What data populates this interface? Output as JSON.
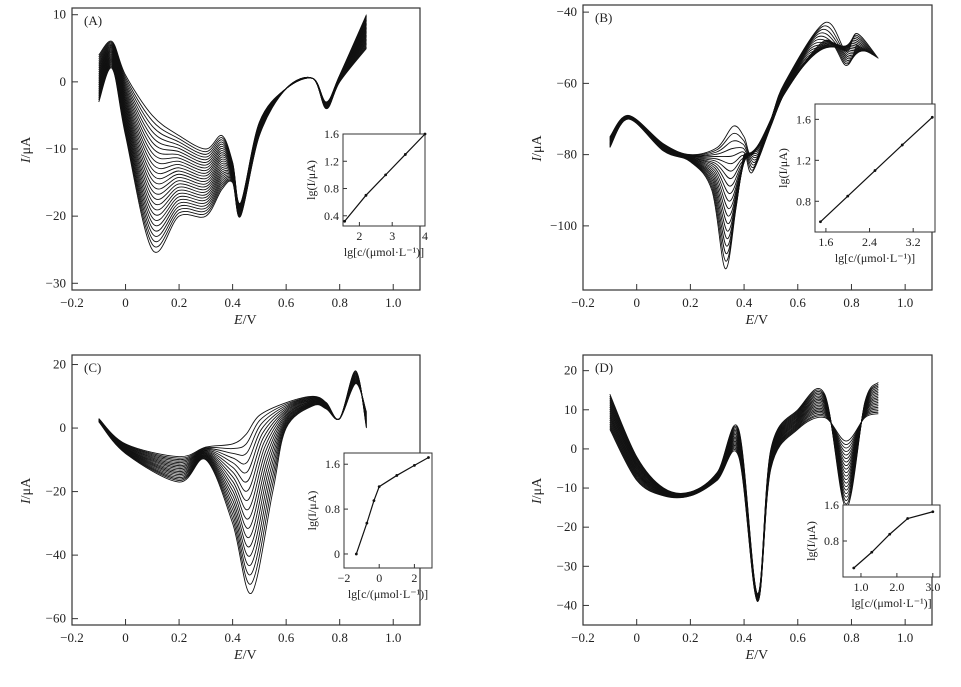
{
  "chart_data": [
    {
      "type": "line",
      "panel_label": "(A)",
      "xlabel_italic": "E",
      "xlabel_unit": "/V",
      "ylabel_italic": "I",
      "ylabel_unit": "/μA",
      "xlim": [
        -0.2,
        1.1
      ],
      "ylim": [
        -31,
        11
      ],
      "xticks": [
        -0.2,
        0,
        0.2,
        0.4,
        0.6,
        0.8,
        1.0
      ],
      "xtick_labels": [
        "−0.2",
        "0",
        "0.2",
        "0.4",
        "0.6",
        "0.8",
        "1.0"
      ],
      "yticks": [
        10,
        0,
        -10,
        -20,
        -30
      ],
      "ytick_labels": [
        "10",
        "0",
        "−10",
        "−20",
        "−30"
      ],
      "n_curves": 26,
      "curve_first": [
        [
          -0.1,
          4
        ],
        [
          -0.05,
          6
        ],
        [
          0,
          1
        ],
        [
          0.1,
          -5
        ],
        [
          0.2,
          -8
        ],
        [
          0.3,
          -10
        ],
        [
          0.36,
          -8
        ],
        [
          0.4,
          -12
        ],
        [
          0.43,
          -18
        ],
        [
          0.5,
          -6
        ],
        [
          0.6,
          -1
        ],
        [
          0.7,
          0.5
        ],
        [
          0.75,
          -3
        ],
        [
          0.8,
          1
        ],
        [
          0.9,
          10
        ]
      ],
      "curve_last": [
        [
          -0.1,
          -3
        ],
        [
          -0.05,
          2
        ],
        [
          0,
          -8
        ],
        [
          0.1,
          -25
        ],
        [
          0.2,
          -20
        ],
        [
          0.3,
          -20
        ],
        [
          0.36,
          -16
        ],
        [
          0.4,
          -15
        ],
        [
          0.43,
          -20
        ],
        [
          0.5,
          -8
        ],
        [
          0.6,
          -1
        ],
        [
          0.7,
          0.5
        ],
        [
          0.75,
          -4
        ],
        [
          0.8,
          0
        ],
        [
          0.9,
          5
        ]
      ],
      "inset": {
        "xlabel": "lg[c/(μmol·L⁻¹)]",
        "ylabel": "lg(I/μA)",
        "xlim": [
          1.5,
          4
        ],
        "ylim": [
          0.25,
          1.6
        ],
        "xticks": [
          2,
          3,
          4
        ],
        "xtick_labels": [
          "2",
          "3",
          "4"
        ],
        "yticks": [
          0.4,
          0.8,
          1.2,
          1.6
        ],
        "ytick_labels": [
          "0.4",
          "0.8",
          "1.2",
          "1.6"
        ],
        "points": [
          [
            1.55,
            0.32
          ],
          [
            2.2,
            0.7
          ],
          [
            2.8,
            1.0
          ],
          [
            3.4,
            1.3
          ],
          [
            4.0,
            1.6
          ]
        ]
      }
    },
    {
      "type": "line",
      "panel_label": "(B)",
      "xlabel_italic": "E",
      "xlabel_unit": "/V",
      "ylabel_italic": "I",
      "ylabel_unit": "/μA",
      "xlim": [
        -0.2,
        1.1
      ],
      "ylim": [
        -118,
        -38
      ],
      "xticks": [
        -0.2,
        0,
        0.2,
        0.4,
        0.6,
        0.8,
        1.0
      ],
      "xtick_labels": [
        "−0.2",
        "0",
        "0.2",
        "0.4",
        "0.6",
        "0.8",
        "1.0"
      ],
      "yticks": [
        -40,
        -60,
        -80,
        -100
      ],
      "ytick_labels": [
        "−40",
        "−60",
        "−80",
        "−100"
      ],
      "n_curves": 20,
      "curve_first": [
        [
          -0.1,
          -75
        ],
        [
          -0.03,
          -69
        ],
        [
          0.1,
          -77
        ],
        [
          0.2,
          -80
        ],
        [
          0.3,
          -78
        ],
        [
          0.36,
          -72
        ],
        [
          0.4,
          -75
        ],
        [
          0.43,
          -80
        ],
        [
          0.5,
          -70
        ],
        [
          0.55,
          -60
        ],
        [
          0.7,
          -43
        ],
        [
          0.78,
          -51
        ],
        [
          0.82,
          -46
        ],
        [
          0.9,
          -53
        ]
      ],
      "curve_last": [
        [
          -0.1,
          -78
        ],
        [
          -0.03,
          -70
        ],
        [
          0.1,
          -79
        ],
        [
          0.2,
          -82
        ],
        [
          0.28,
          -90
        ],
        [
          0.33,
          -112
        ],
        [
          0.37,
          -95
        ],
        [
          0.4,
          -80
        ],
        [
          0.43,
          -85
        ],
        [
          0.5,
          -72
        ],
        [
          0.55,
          -63
        ],
        [
          0.7,
          -48
        ],
        [
          0.78,
          -55
        ],
        [
          0.82,
          -49
        ],
        [
          0.9,
          -58
        ]
      ],
      "inset": {
        "xlabel": "lg[c/(μmol·L⁻¹)]",
        "ylabel": "lg(I/μA)",
        "xlim": [
          1.4,
          3.6
        ],
        "ylim": [
          0.5,
          1.75
        ],
        "xticks": [
          1.6,
          2.4,
          3.2
        ],
        "xtick_labels": [
          "1.6",
          "2.4",
          "3.2"
        ],
        "yticks": [
          0.8,
          1.2,
          1.6
        ],
        "ytick_labels": [
          "0.8",
          "1.2",
          "1.6"
        ],
        "points": [
          [
            1.5,
            0.6
          ],
          [
            2.0,
            0.85
          ],
          [
            2.5,
            1.1
          ],
          [
            3.0,
            1.35
          ],
          [
            3.55,
            1.62
          ]
        ]
      }
    },
    {
      "type": "line",
      "panel_label": "(C)",
      "xlabel_italic": "E",
      "xlabel_unit": "/V",
      "ylabel_italic": "I",
      "ylabel_unit": "/μA",
      "xlim": [
        -0.2,
        1.1
      ],
      "ylim": [
        -62,
        23
      ],
      "xticks": [
        -0.2,
        0,
        0.2,
        0.4,
        0.6,
        0.8,
        1.0
      ],
      "xtick_labels": [
        "−0.2",
        "0",
        "0.2",
        "0.4",
        "0.6",
        "0.8",
        "1.0"
      ],
      "yticks": [
        20,
        0,
        -20,
        -40,
        -60
      ],
      "ytick_labels": [
        "20",
        "0",
        "−20",
        "−40",
        "−60"
      ],
      "n_curves": 18,
      "curve_first": [
        [
          -0.1,
          3
        ],
        [
          0,
          -5
        ],
        [
          0.2,
          -9
        ],
        [
          0.3,
          -6
        ],
        [
          0.4,
          -5
        ],
        [
          0.45,
          -2
        ],
        [
          0.5,
          4
        ],
        [
          0.6,
          8
        ],
        [
          0.7,
          10
        ],
        [
          0.75,
          8
        ],
        [
          0.8,
          3
        ],
        [
          0.86,
          18
        ],
        [
          0.9,
          0
        ]
      ],
      "curve_last": [
        [
          -0.1,
          2
        ],
        [
          0,
          -8
        ],
        [
          0.2,
          -17
        ],
        [
          0.3,
          -10
        ],
        [
          0.4,
          -30
        ],
        [
          0.47,
          -52
        ],
        [
          0.55,
          -20
        ],
        [
          0.6,
          0
        ],
        [
          0.7,
          7
        ],
        [
          0.75,
          6
        ],
        [
          0.8,
          3
        ],
        [
          0.86,
          14
        ],
        [
          0.9,
          5
        ]
      ],
      "inset": {
        "xlabel": "lg[c/(μmol·L⁻¹)]",
        "ylabel": "lg(I/μA)",
        "xlim": [
          -2,
          3
        ],
        "ylim": [
          -0.25,
          1.8
        ],
        "xticks": [
          -2,
          0,
          2
        ],
        "xtick_labels": [
          "−2",
          "0",
          "2"
        ],
        "yticks": [
          0,
          0.8,
          1.6
        ],
        "ytick_labels": [
          "0",
          "0.8",
          "1.6"
        ],
        "points": [
          [
            -1.3,
            0
          ],
          [
            -0.7,
            0.55
          ],
          [
            -0.3,
            0.95
          ],
          [
            0,
            1.2
          ],
          [
            1,
            1.4
          ],
          [
            2,
            1.58
          ],
          [
            2.8,
            1.72
          ]
        ]
      }
    },
    {
      "type": "line",
      "panel_label": "(D)",
      "xlabel_italic": "E",
      "xlabel_unit": "/V",
      "ylabel_italic": "I",
      "ylabel_unit": "/μA",
      "xlim": [
        -0.2,
        1.1
      ],
      "ylim": [
        -45,
        24
      ],
      "xticks": [
        -0.2,
        0,
        0.2,
        0.4,
        0.6,
        0.8,
        1.0
      ],
      "xtick_labels": [
        "−0.2",
        "0",
        "0.2",
        "0.4",
        "0.6",
        "0.8",
        "1.0"
      ],
      "yticks": [
        20,
        10,
        0,
        -10,
        -20,
        -30,
        -40
      ],
      "ytick_labels": [
        "20",
        "10",
        "0",
        "−10",
        "−20",
        "−30",
        "−40"
      ],
      "n_curves": 20,
      "curve_first": [
        [
          -0.1,
          14
        ],
        [
          0,
          -2
        ],
        [
          0.1,
          -10
        ],
        [
          0.2,
          -11
        ],
        [
          0.3,
          -6
        ],
        [
          0.38,
          5
        ],
        [
          0.45,
          -37
        ],
        [
          0.5,
          0
        ],
        [
          0.6,
          10
        ],
        [
          0.7,
          14
        ],
        [
          0.78,
          -15
        ],
        [
          0.85,
          12
        ],
        [
          0.9,
          17
        ]
      ],
      "curve_last": [
        [
          -0.1,
          5
        ],
        [
          0,
          -8
        ],
        [
          0.1,
          -12
        ],
        [
          0.2,
          -12
        ],
        [
          0.3,
          -8
        ],
        [
          0.38,
          -2
        ],
        [
          0.45,
          -39
        ],
        [
          0.5,
          -5
        ],
        [
          0.6,
          5
        ],
        [
          0.7,
          8
        ],
        [
          0.78,
          2
        ],
        [
          0.85,
          8
        ],
        [
          0.9,
          9
        ]
      ],
      "inset": {
        "xlabel": "lg[c/(μmol·L⁻¹)]",
        "ylabel": "lg(I/μA)",
        "xlim": [
          0.5,
          3.2
        ],
        "ylim": [
          0,
          1.6
        ],
        "xticks": [
          1.0,
          2.0,
          3.0
        ],
        "xtick_labels": [
          "1.0",
          "2.0",
          "3.0"
        ],
        "yticks": [
          0.8,
          1.6
        ],
        "ytick_labels": [
          "0.8",
          "1.6"
        ],
        "points": [
          [
            0.8,
            0.2
          ],
          [
            1.3,
            0.55
          ],
          [
            1.8,
            0.95
          ],
          [
            2.3,
            1.3
          ],
          [
            3.0,
            1.45
          ]
        ]
      }
    }
  ]
}
